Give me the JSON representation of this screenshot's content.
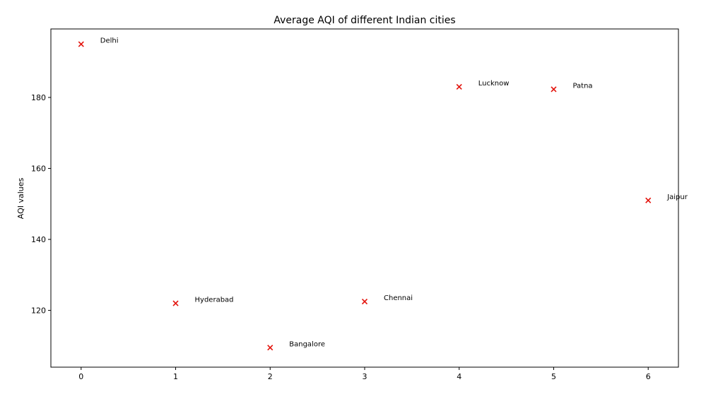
{
  "chart_data": {
    "type": "scatter",
    "title": "Average AQI of different Indian cities",
    "xlabel": "",
    "ylabel": "AQI values",
    "x": [
      0,
      1,
      2,
      3,
      4,
      5,
      6
    ],
    "y": [
      195,
      122,
      109.5,
      122.5,
      183,
      182.3,
      151
    ],
    "point_labels": [
      "Delhi",
      "Hyderabad",
      "Bangalore",
      "Chennai",
      "Lucknow",
      "Patna",
      "Jaipur"
    ],
    "xlim": [
      -0.32,
      6.32
    ],
    "ylim": [
      104,
      199.3
    ],
    "xticks": [
      0,
      1,
      2,
      3,
      4,
      5,
      6
    ],
    "yticks": [
      120,
      140,
      160,
      180
    ],
    "marker": "x",
    "marker_color": "#e3120b",
    "grid": false,
    "legend": false
  }
}
